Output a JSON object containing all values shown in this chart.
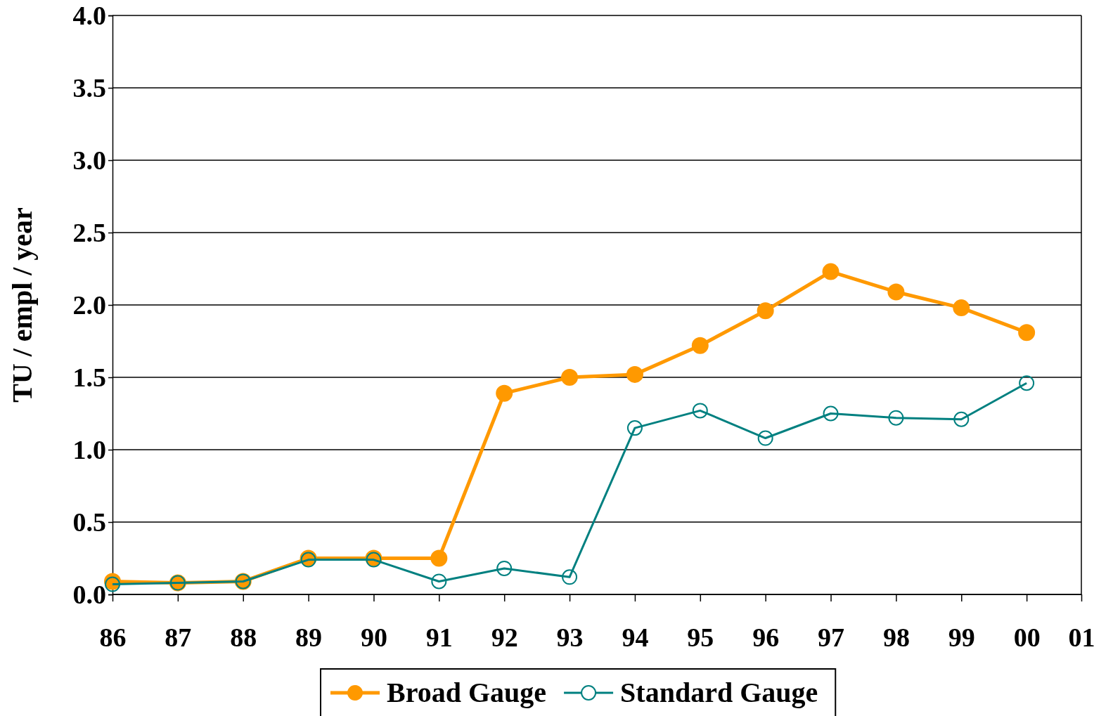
{
  "chart_data": {
    "type": "line",
    "ylabel": "TU / empl / year",
    "categories": [
      "86",
      "87",
      "88",
      "89",
      "90",
      "91",
      "92",
      "93",
      "94",
      "95",
      "96",
      "97",
      "98",
      "99",
      "00",
      "01"
    ],
    "series": [
      {
        "name": "Broad Gauge",
        "color": "#ff9900",
        "marker": "circle",
        "values": [
          0.09,
          0.08,
          0.09,
          0.25,
          0.25,
          0.25,
          1.39,
          1.5,
          1.52,
          1.72,
          1.96,
          2.23,
          2.09,
          1.98,
          1.81,
          null
        ]
      },
      {
        "name": "Standard Gauge",
        "color": "#008080",
        "marker": "circle",
        "values": [
          0.07,
          0.08,
          0.09,
          0.24,
          0.24,
          0.09,
          0.18,
          0.12,
          1.15,
          1.27,
          1.08,
          1.25,
          1.22,
          1.21,
          1.46,
          null
        ]
      }
    ],
    "ylim": [
      0,
      4
    ],
    "yticks": [
      {
        "value": 0,
        "label": "0.0"
      },
      {
        "value": 0.5,
        "label": "0.5"
      },
      {
        "value": 1,
        "label": "1.0"
      },
      {
        "value": 1.5,
        "label": "1.5"
      },
      {
        "value": 2,
        "label": "2.0"
      },
      {
        "value": 2.5,
        "label": "2.5"
      },
      {
        "value": 3,
        "label": "3.0"
      },
      {
        "value": 3.5,
        "label": "3.5"
      },
      {
        "value": 4,
        "label": "4.0"
      }
    ],
    "grid": "y",
    "legend": "bottom"
  }
}
